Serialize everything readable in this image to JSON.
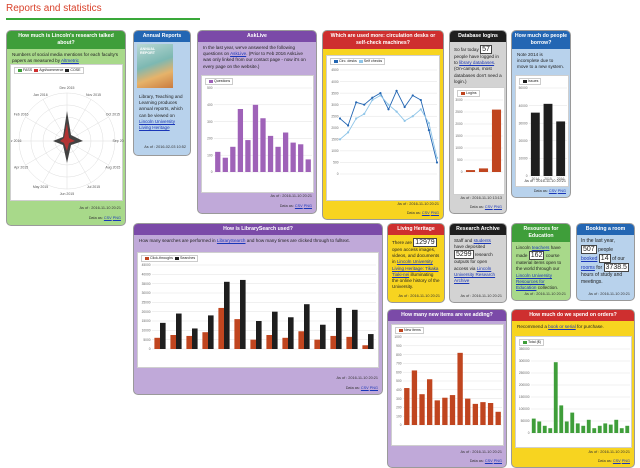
{
  "page": {
    "title": "Reports and statistics"
  },
  "colors": {
    "green": "#3f9e3a",
    "blue": "#2366b3",
    "purple": "#7b4aa8",
    "red": "#ce2f2f",
    "black": "#1e1e1e",
    "orange": "#c0451f",
    "bar_purple": "#9f62b8"
  },
  "research": {
    "title": "How much is Lincoln's research talked about?",
    "text": "Numbers of social media mentions for each faculty's papers as measured by",
    "link": "Altmetric",
    "legend": [
      "FASS",
      "Agri/commerce",
      "COSE"
    ],
    "months": [
      "Dec 2015",
      "Nov 2015",
      "Oct 2015",
      "Sep 2015",
      "Aug 2015",
      "Jul 2015",
      "Jun 2015",
      "May 2015",
      "Apr 2015",
      "Mar 2016",
      "Feb 2016",
      "Jan 2016"
    ],
    "asof": "As of : 2016-11-10 20:21",
    "source_prefix": "Data as:",
    "source_links": [
      "CSV",
      "PNG"
    ]
  },
  "annual": {
    "title": "Annual Reports",
    "cover_lines": [
      "ANNUAL",
      "REPORT"
    ],
    "text": "Library, Teaching and Learning produces annual reports, which can be viewed on",
    "link": "Lincoln University Living Heritage",
    "asof": "As of : 2016-02-03 10:52"
  },
  "asklive": {
    "title": "AskLive",
    "text_a": "In the last year, we've answered the following questions on",
    "link": "AskLive",
    "text_b": ". (Prior to Feb 2016 AskLive was only linked from our contact page - now it's on every page on the website.)",
    "legend": "Questions",
    "asof": "As of : 2016-11-10 20:21",
    "source_prefix": "Data as:",
    "source_links": [
      "CSV",
      "PNG"
    ]
  },
  "desks": {
    "title": "Which are used more: circulation desks or self-check machines?",
    "legend": [
      "Circ. desks",
      "Self checks"
    ],
    "asof": "As of : 2016-11-10 20:21",
    "source_prefix": "Data as:",
    "source_links": [
      "CSV",
      "PNG"
    ]
  },
  "database": {
    "title": "Database logins",
    "text_a": "So far today",
    "count": "57",
    "text_b": "people have logged in to",
    "link": "library databases",
    "text_c": ". (On-campus, most databases don't need a login.)",
    "legend": "Logins",
    "asof": "As of : 2016-11-10 13:13",
    "source_prefix": "Data as:",
    "source_links": [
      "CSV",
      "PNG"
    ]
  },
  "borrow": {
    "title": "How much do people borrow?",
    "text": "Note 2014 is incomplete due to move to a new system.",
    "legend": "Issues",
    "years": [
      "2014",
      "2015",
      "2016"
    ],
    "asof": "As of : 2016-11-10 20:21",
    "source_prefix": "Data as:",
    "source_links": [
      "CSV",
      "PNG"
    ]
  },
  "search": {
    "title": "How is LibrarySearch used?",
    "text_a": "How many searches are performed in",
    "link": "LibrarySearch",
    "text_b": "and how many times are clicked through to fulltext.",
    "legend": [
      "Click-throughs",
      "Searches"
    ],
    "asof": "As of : 2016-11-10 20:21",
    "source_prefix": "Data as:",
    "source_links": [
      "CSV",
      "PNG"
    ]
  },
  "heritage": {
    "title": "Living Heritage",
    "text_a": "There are",
    "count_a": "12979",
    "text_b": "open access images, videos, and documents in",
    "link": "Lincoln University Living Heritage: Tikaka Tiaki-nei",
    "text_c": "illuminating the online history of the University.",
    "asof": "As of : 2016-11-10 20:21"
  },
  "archive": {
    "title": "Research Archive",
    "text_a": "Staff and",
    "link_a": "students",
    "text_b": "have deposited",
    "count": "5299",
    "text_c": "research outputs for open access via",
    "link_b": "Lincoln University Research Archive",
    "asof": "As of : 2016-11-10 20:21"
  },
  "education": {
    "title": "Resources for Education",
    "text_a": "Lincoln",
    "link_a": "teachers",
    "text_b": "have made",
    "count": "162",
    "text_c": "course material items open to the world through our",
    "link_b": "Lincoln University Resources for Education",
    "text_d": "collection.",
    "asof": "As of : 2016-11-10 20:21"
  },
  "booking": {
    "title": "Booking a room",
    "text_a": "In the last year,",
    "count_a": "507",
    "text_b": "people",
    "link": "booked",
    "count_b": "14",
    "text_c": "of our",
    "link_b": "rooms",
    "text_d": "for",
    "count_c": "3738.5",
    "text_e": "hours of study and meetings.",
    "asof": "As of : 2016-11-10 20:21"
  },
  "items": {
    "title": "How many new items are we adding?",
    "legend": "New items",
    "asof": "As of : 2016-11-10 20:21",
    "source_prefix": "Data as:",
    "source_links": [
      "CSV",
      "PNG"
    ]
  },
  "spend": {
    "title": "How much do we spend on orders?",
    "text_a": "Recommend a",
    "link": "book or serial",
    "text_b": "for purchase.",
    "legend": "Total ($)",
    "asof": "As of : 2016-11-10 20:21",
    "source_prefix": "Data as:",
    "source_links": [
      "CSV",
      "PNG"
    ]
  },
  "chart_data": [
    {
      "type": "bar",
      "id": "asklive",
      "series": [
        {
          "name": "Questions",
          "values": [
            120,
            85,
            150,
            375,
            190,
            400,
            320,
            215,
            150,
            235,
            175,
            165,
            75
          ]
        }
      ],
      "ylim": [
        0,
        500
      ]
    },
    {
      "type": "line",
      "id": "desks",
      "series": [
        {
          "name": "Circ. desks",
          "values": [
            2400,
            2100,
            3100,
            3000,
            3300,
            3500,
            2800,
            3600,
            2900,
            3400,
            3200,
            1900,
            500
          ]
        },
        {
          "name": "Self checks",
          "values": [
            1500,
            1800,
            2400,
            2600,
            3200,
            3400,
            3000,
            2700,
            2300,
            2500,
            2800,
            2200,
            700
          ]
        }
      ],
      "ylim": [
        0,
        4500
      ]
    },
    {
      "type": "bar",
      "id": "database",
      "series": [
        {
          "name": "Logins",
          "values": [
            80,
            150,
            2600
          ]
        }
      ],
      "ylim": [
        0,
        3000
      ]
    },
    {
      "type": "bar",
      "id": "borrow",
      "categories": [
        "2014",
        "2015",
        "2016"
      ],
      "series": [
        {
          "name": "Issues",
          "values": [
            36000,
            41000,
            31000
          ]
        }
      ],
      "ylim": [
        0,
        50000
      ]
    },
    {
      "type": "bar",
      "id": "search",
      "series": [
        {
          "name": "Click-throughs",
          "values": [
            6000,
            7500,
            7000,
            9000,
            22000,
            16000,
            5000,
            7500,
            6000,
            9500,
            5000,
            7000,
            6500,
            2000
          ]
        },
        {
          "name": "Searches",
          "values": [
            14000,
            19000,
            11000,
            18000,
            36000,
            37000,
            15000,
            20000,
            17000,
            24000,
            13000,
            22000,
            21000,
            8000
          ]
        }
      ],
      "ylim": [
        0,
        45000
      ]
    },
    {
      "type": "bar",
      "id": "items",
      "series": [
        {
          "name": "New items",
          "values": [
            420,
            620,
            350,
            520,
            280,
            310,
            340,
            820,
            300,
            240,
            260,
            250,
            150
          ]
        }
      ],
      "ylim": [
        0,
        1000
      ]
    },
    {
      "type": "bar",
      "id": "spend",
      "series": [
        {
          "name": "Total ($)",
          "values": [
            60000,
            48000,
            30000,
            20000,
            295000,
            115000,
            48000,
            85000,
            40000,
            30000,
            55000,
            20000,
            30000,
            40000,
            35000,
            55000,
            20000,
            30000
          ]
        }
      ],
      "ylim": [
        0,
        350000
      ]
    }
  ]
}
